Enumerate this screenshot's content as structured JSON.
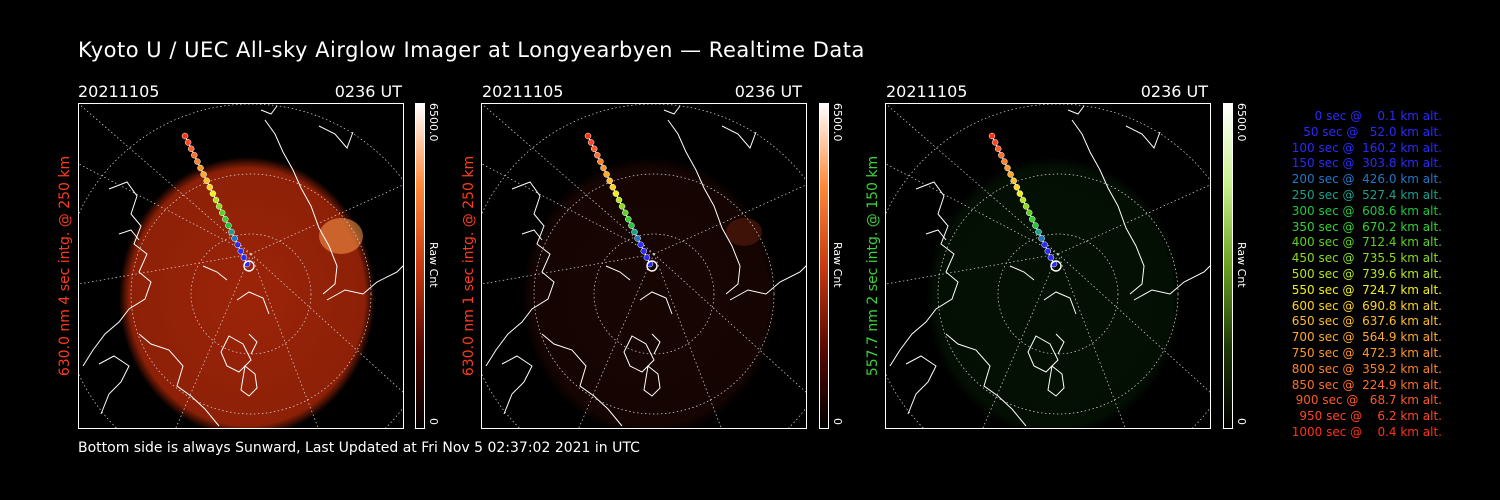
{
  "title": "Kyoto U / UEC All-sky Airglow Imager at Longyearbyen — Realtime Data",
  "footer": "Bottom side is always Sunward, Last Updated at Fri Nov  5 02:37:02 2021 in UTC",
  "panels": [
    {
      "date": "20211105",
      "time": "0236 UT",
      "ylabel": "630.0 nm 4 sec intg. @ 250 km",
      "ylabel_color": "#ff3b1c",
      "colorbar": {
        "max": "6500.0",
        "min": "0",
        "unit": "Raw Cnt",
        "colors": [
          "#ffffff",
          "#ff8a3a",
          "#c83a10",
          "#5a0800",
          "#000000"
        ]
      },
      "glow": {
        "color": "#9c2408",
        "intensity": 1.0
      }
    },
    {
      "date": "20211105",
      "time": "0236 UT",
      "ylabel": "630.0 nm 1 sec intg. @ 250 km",
      "ylabel_color": "#ff3b1c",
      "colorbar": {
        "max": "6500.0",
        "min": "0",
        "unit": "Raw Cnt",
        "colors": [
          "#ffffff",
          "#ff8a3a",
          "#c83a10",
          "#5a0800",
          "#000000"
        ]
      },
      "glow": {
        "color": "#2e0a04",
        "intensity": 0.5
      }
    },
    {
      "date": "20211105",
      "time": "0236 UT",
      "ylabel": "557.7 nm 2 sec intg. @ 150 km",
      "ylabel_color": "#3cd23c",
      "colorbar": {
        "max": "6500.0",
        "min": "0",
        "unit": "Raw Cnt",
        "colors": [
          "#ffffff",
          "#c8f08c",
          "#6aa020",
          "#1e3a06",
          "#000000"
        ]
      },
      "glow": {
        "color": "#0c2a0c",
        "intensity": 0.4
      }
    }
  ],
  "legend": [
    {
      "text": "   0 sec @    0.1 km alt.",
      "color": "#2a2aff"
    },
    {
      "text": "  50 sec @   52.0 km alt.",
      "color": "#2a2aff"
    },
    {
      "text": " 100 sec @  160.2 km alt.",
      "color": "#2a2aff"
    },
    {
      "text": " 150 sec @  303.8 km alt.",
      "color": "#2a2aff"
    },
    {
      "text": " 200 sec @  426.0 km alt.",
      "color": "#1e78c8"
    },
    {
      "text": " 250 sec @  527.4 km alt.",
      "color": "#19a08c"
    },
    {
      "text": " 300 sec @  608.6 km alt.",
      "color": "#1ec83c"
    },
    {
      "text": " 350 sec @  670.2 km alt.",
      "color": "#32d232"
    },
    {
      "text": " 400 sec @  712.4 km alt.",
      "color": "#5ad21e"
    },
    {
      "text": " 450 sec @  735.5 km alt.",
      "color": "#8cdc1e"
    },
    {
      "text": " 500 sec @  739.6 km alt.",
      "color": "#b4e61e"
    },
    {
      "text": " 550 sec @  724.7 km alt.",
      "color": "#f0f014"
    },
    {
      "text": " 600 sec @  690.8 km alt.",
      "color": "#ffd21e"
    },
    {
      "text": " 650 sec @  637.6 km alt.",
      "color": "#ffbe28"
    },
    {
      "text": " 700 sec @  564.9 km alt.",
      "color": "#ffaa28"
    },
    {
      "text": " 750 sec @  472.3 km alt.",
      "color": "#ff9628"
    },
    {
      "text": " 800 sec @  359.2 km alt.",
      "color": "#ff8228"
    },
    {
      "text": " 850 sec @  224.9 km alt.",
      "color": "#ff6e28"
    },
    {
      "text": " 900 sec @   68.7 km alt.",
      "color": "#ff5a28"
    },
    {
      "text": " 950 sec @    6.2 km alt.",
      "color": "#ff4628"
    },
    {
      "text": "1000 sec @    0.4 km alt.",
      "color": "#ff3214"
    }
  ],
  "icons": {
    "map": "coastline-map",
    "trajectory": "rocket-trajectory"
  }
}
